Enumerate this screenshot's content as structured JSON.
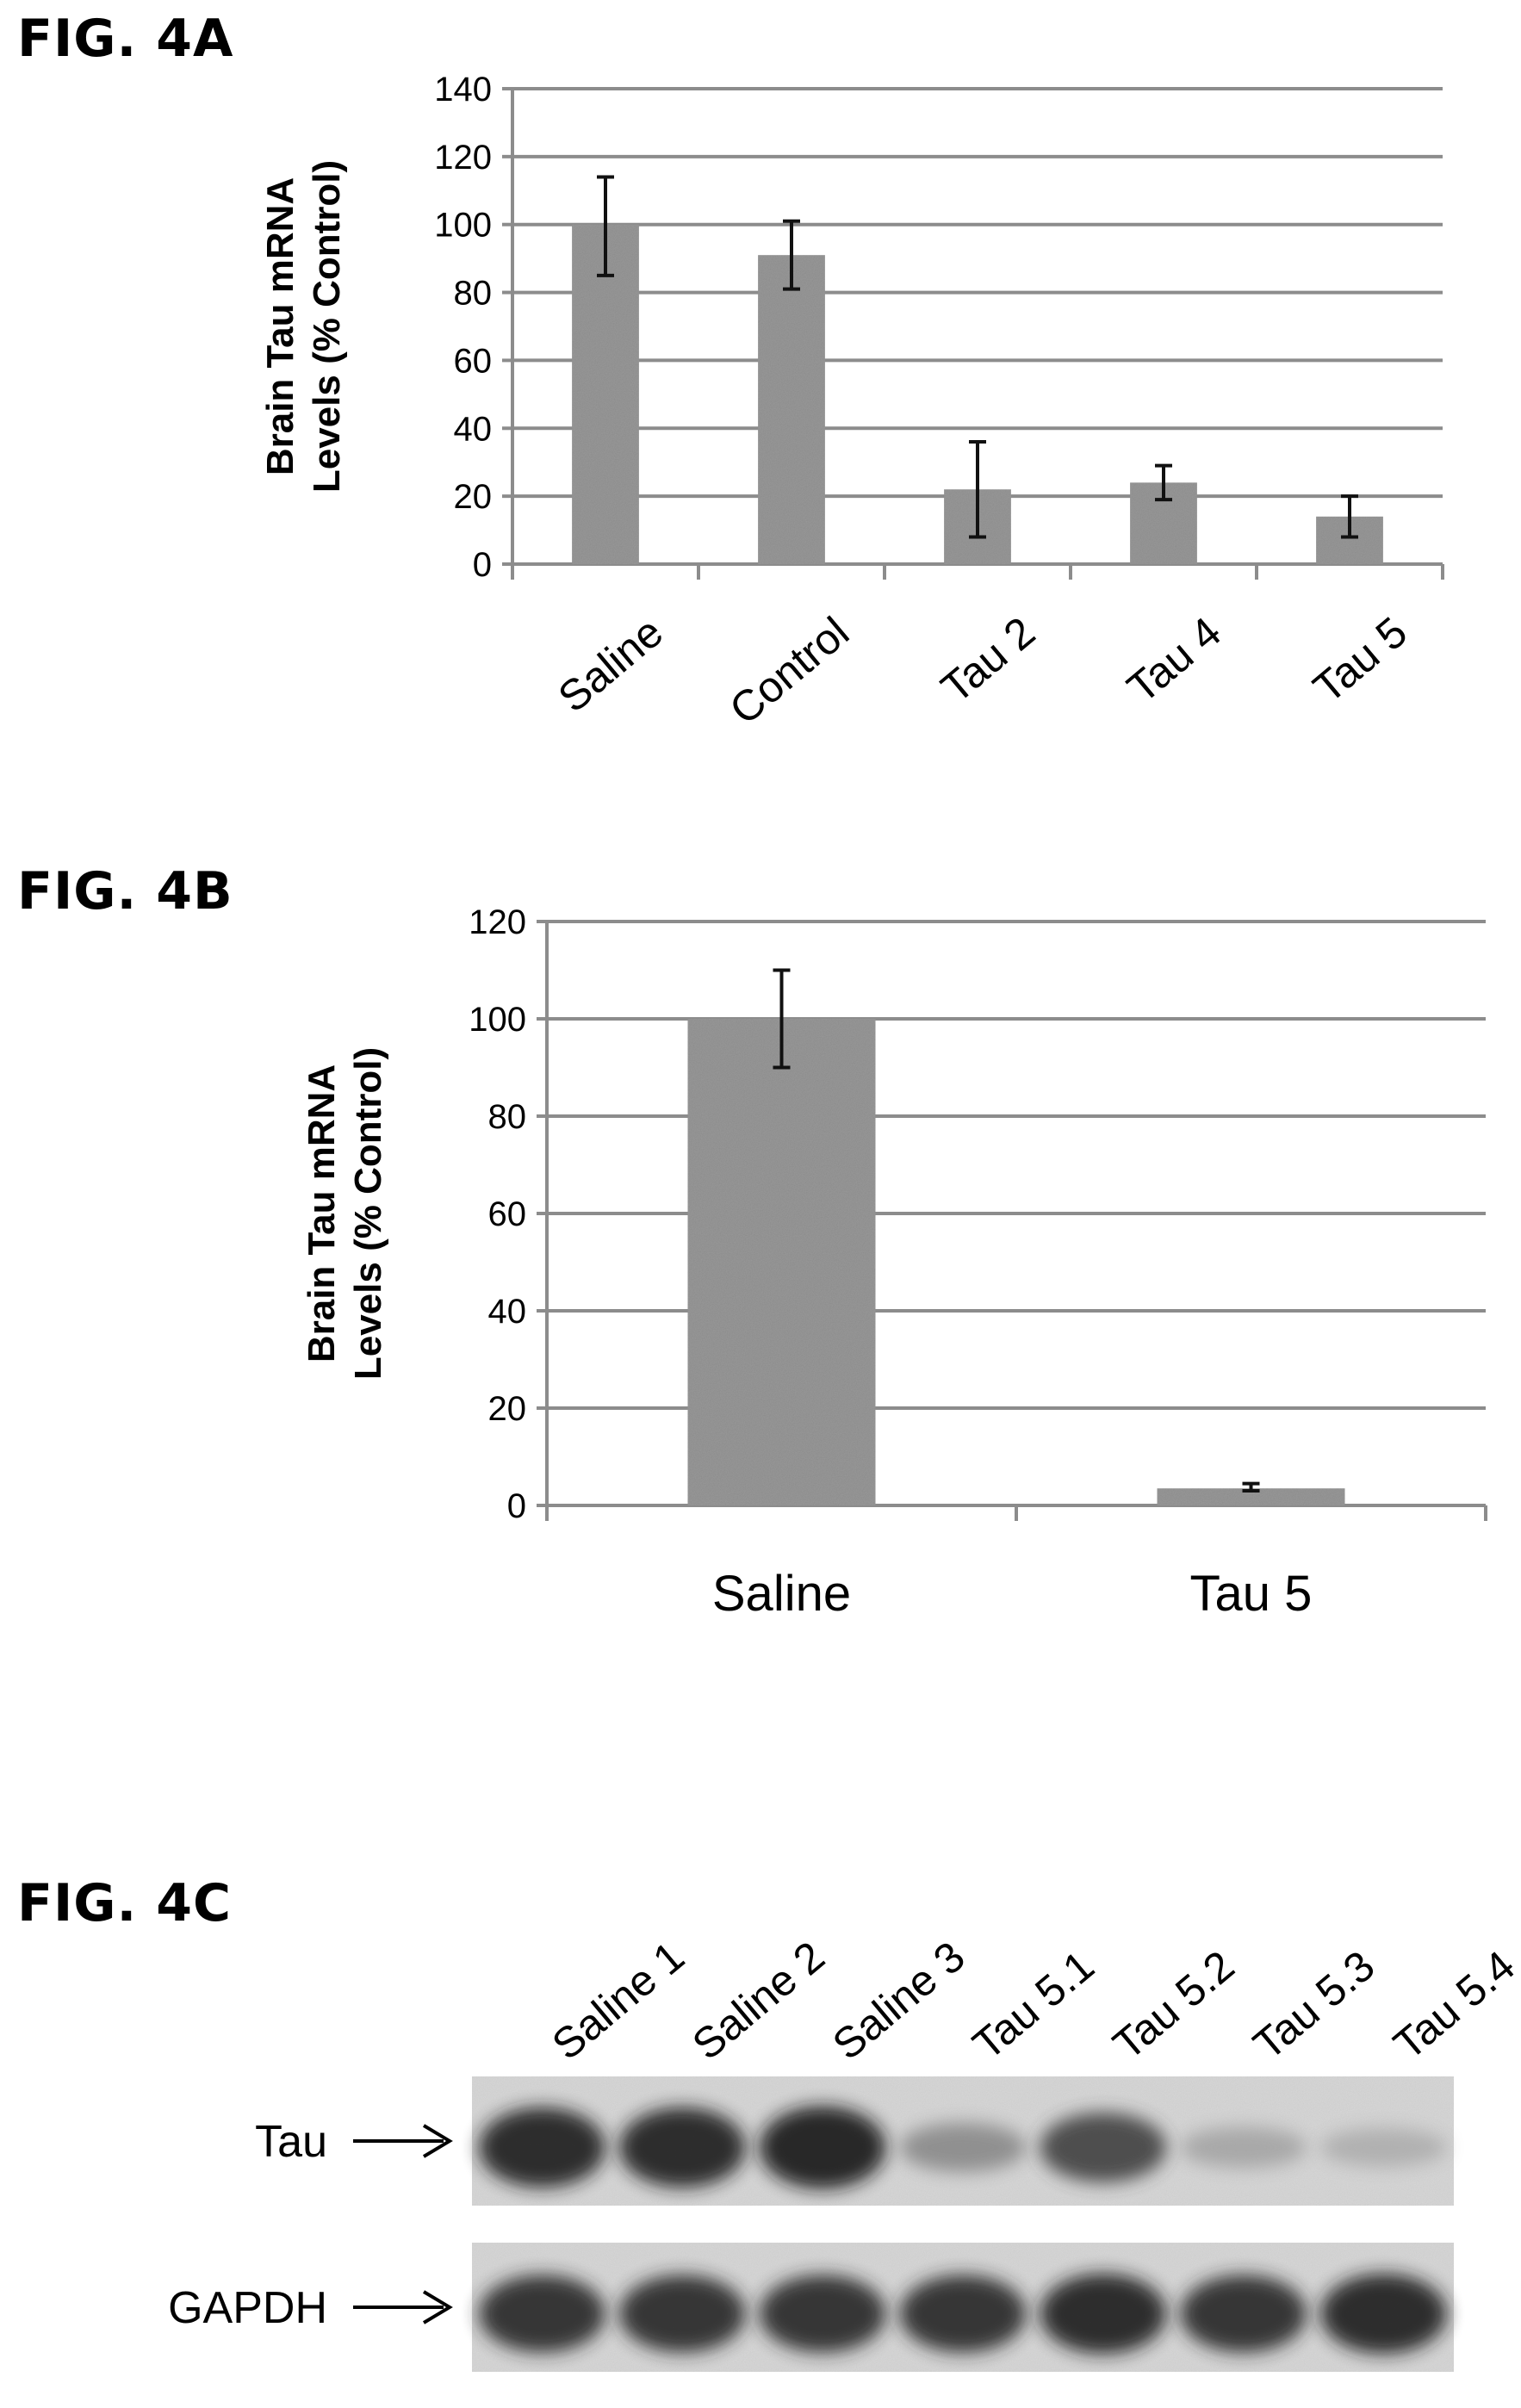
{
  "figures": {
    "fig4a": "FIG. 4A",
    "fig4b": "FIG. 4B",
    "fig4c": "FIG. 4C"
  },
  "chart_data": [
    {
      "type": "bar",
      "figure": "FIG. 4A",
      "categories": [
        "Saline",
        "Control",
        "Tau 2",
        "Tau 4",
        "Tau 5"
      ],
      "values": [
        100,
        91,
        22,
        24,
        14
      ],
      "error_low": [
        85,
        81,
        8,
        19,
        8
      ],
      "error_high": [
        114,
        101,
        36,
        29,
        20
      ],
      "ylabel_line1": "Brain Tau mRNA",
      "ylabel_line2": "Levels (% Control)",
      "ylim": [
        0,
        140
      ],
      "yticks": [
        0,
        20,
        40,
        60,
        80,
        100,
        120,
        140
      ],
      "grid": true,
      "bar_color": "#8a8a8a"
    },
    {
      "type": "bar",
      "figure": "FIG. 4B",
      "categories": [
        "Saline",
        "Tau 5"
      ],
      "values": [
        100,
        3.5
      ],
      "error_low": [
        90,
        3
      ],
      "error_high": [
        110,
        4.5
      ],
      "ylabel_line1": "Brain Tau mRNA",
      "ylabel_line2": "Levels (% Control)",
      "ylim": [
        0,
        120
      ],
      "yticks": [
        0,
        20,
        40,
        60,
        80,
        100,
        120
      ],
      "grid": true,
      "bar_color": "#8a8a8a"
    }
  ],
  "blot": {
    "lanes": [
      "Saline 1",
      "Saline 2",
      "Saline 3",
      "Tau 5.1",
      "Tau 5.2",
      "Tau 5.3",
      "Tau 5.4"
    ],
    "rows": [
      {
        "label": "Tau",
        "band_intensity": [
          0.95,
          0.95,
          1.0,
          0.35,
          0.75,
          0.2,
          0.15
        ]
      },
      {
        "label": "GAPDH",
        "band_intensity": [
          0.9,
          0.9,
          0.9,
          0.9,
          0.95,
          0.9,
          0.95
        ]
      }
    ],
    "arrow_glyph": "⟶"
  }
}
